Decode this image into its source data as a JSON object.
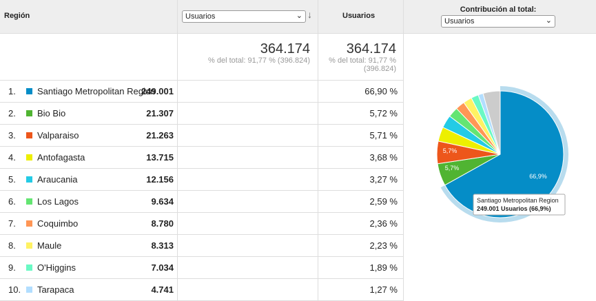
{
  "header": {
    "region": "Región",
    "metric_select": "Usuarios",
    "metric": "Usuarios",
    "contribution": "Contribución al total:",
    "contribution_select": "Usuarios"
  },
  "totals": {
    "value": "364.174",
    "value_note": "% del total: 91,77 % (396.824)",
    "percent": "364.174",
    "percent_note": "% del total: 91,77 % (396.824)"
  },
  "rows": [
    {
      "index": "1.",
      "color": "#058dc7",
      "name": "Santiago Metropolitan Region",
      "value": "249.001",
      "percent": "66,90 %"
    },
    {
      "index": "2.",
      "color": "#50b432",
      "name": "Bio Bio",
      "value": "21.307",
      "percent": "5,72 %"
    },
    {
      "index": "3.",
      "color": "#ed561b",
      "name": "Valparaiso",
      "value": "21.263",
      "percent": "5,71 %"
    },
    {
      "index": "4.",
      "color": "#edef00",
      "name": "Antofagasta",
      "value": "13.715",
      "percent": "3,68 %"
    },
    {
      "index": "5.",
      "color": "#24cbe5",
      "name": "Araucania",
      "value": "12.156",
      "percent": "3,27 %"
    },
    {
      "index": "6.",
      "color": "#64e572",
      "name": "Los Lagos",
      "value": "9.634",
      "percent": "2,59 %"
    },
    {
      "index": "7.",
      "color": "#ff9655",
      "name": "Coquimbo",
      "value": "8.780",
      "percent": "2,36 %"
    },
    {
      "index": "8.",
      "color": "#fff263",
      "name": "Maule",
      "value": "8.313",
      "percent": "2,23 %"
    },
    {
      "index": "9.",
      "color": "#6af9c4",
      "name": "O'Higgins",
      "value": "7.034",
      "percent": "1,89 %"
    },
    {
      "index": "10.",
      "color": "#b2deff",
      "name": "Tarapaca",
      "value": "4.741",
      "percent": "1,27 %"
    }
  ],
  "pie": {
    "values": [
      66.9,
      5.72,
      5.71,
      3.68,
      3.27,
      2.59,
      2.36,
      2.23,
      1.89,
      1.27,
      4.38
    ],
    "colors": [
      "#058dc7",
      "#50b432",
      "#ed561b",
      "#edef00",
      "#24cbe5",
      "#64e572",
      "#ff9655",
      "#fff263",
      "#6af9c4",
      "#b2deff",
      "#cccccc"
    ],
    "labels": [
      "66,9%",
      "5,7%",
      "5,7%"
    ],
    "tooltip": {
      "title": "Santiago Metropolitan Region",
      "text": "249.001 Usuarios (66,9%)"
    }
  }
}
